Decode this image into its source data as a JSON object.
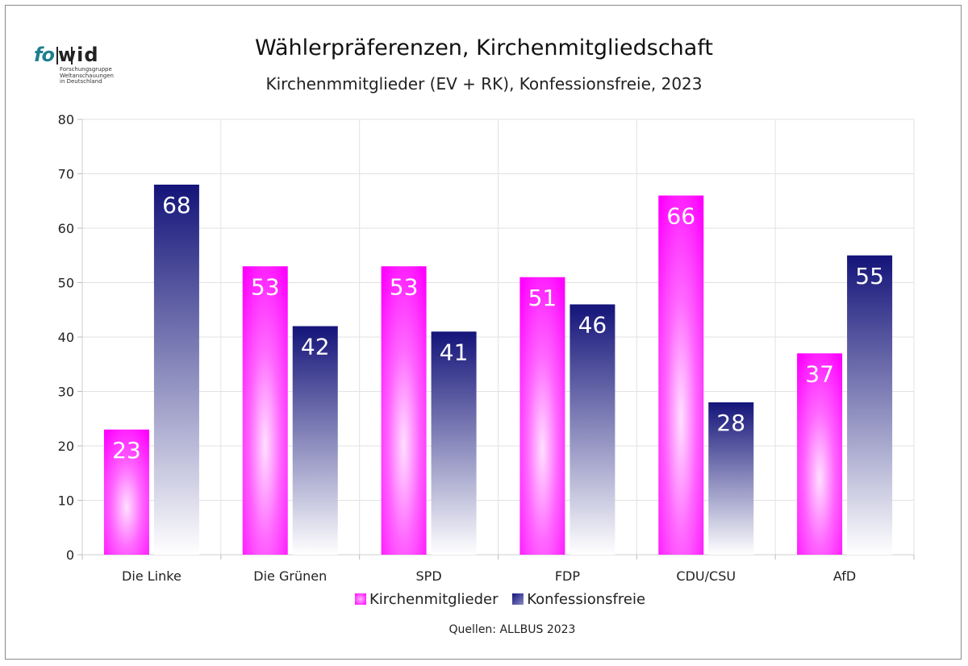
{
  "logo": {
    "brand_fo": "fo",
    "brand_wid": "wid",
    "tagline_line1": "Forschungsgruppe",
    "tagline_line2": "Weltanschauungen",
    "tagline_line3": "in Deutschland"
  },
  "chart_data": {
    "type": "bar",
    "title": "Wählerpräferenzen, Kirchenmitgliedschaft",
    "subtitle": "Kirchenmmitglieder (EV + RK), Konfessionsfreie, 2023",
    "xlabel": "",
    "ylabel": "",
    "categories": [
      "Die Linke",
      "Die Grünen",
      "SPD",
      "FDP",
      "CDU/CSU",
      "AfD"
    ],
    "series": [
      {
        "name": "Kirchenmitglieder",
        "values": [
          23,
          53,
          53,
          51,
          66,
          37
        ],
        "color": "#ff00ff"
      },
      {
        "name": "Konfessionsfreie",
        "values": [
          68,
          42,
          41,
          46,
          28,
          55
        ],
        "color": "#14147a"
      }
    ],
    "ylim": [
      0,
      80
    ],
    "yticks": [
      0,
      10,
      20,
      30,
      40,
      50,
      60,
      70,
      80
    ],
    "grid": true,
    "legend": "bottom",
    "data_labels": true,
    "source": "Quellen: ALLBUS  2023"
  }
}
